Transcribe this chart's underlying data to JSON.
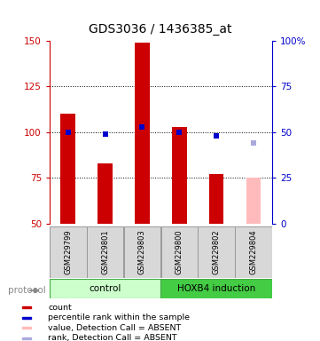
{
  "title": "GDS3036 / 1436385_at",
  "samples": [
    "GSM229799",
    "GSM229801",
    "GSM229803",
    "GSM229800",
    "GSM229802",
    "GSM229804"
  ],
  "ylim_left": [
    50,
    150
  ],
  "ylim_right": [
    0,
    100
  ],
  "yticks_left": [
    50,
    75,
    100,
    125,
    150
  ],
  "yticks_right": [
    0,
    25,
    50,
    75,
    100
  ],
  "ytick_labels_right": [
    "0",
    "25",
    "50",
    "75",
    "100%"
  ],
  "bar_values": [
    110,
    83,
    149,
    103,
    77,
    75
  ],
  "bar_colors": [
    "#cc0000",
    "#cc0000",
    "#cc0000",
    "#cc0000",
    "#cc0000",
    "#ffbbbb"
  ],
  "dot_values": [
    50,
    49,
    53,
    50,
    48,
    44
  ],
  "dot_colors": [
    "#0000cc",
    "#0000cc",
    "#0000cc",
    "#0000cc",
    "#0000cc",
    "#aaaadd"
  ],
  "left_axis_color": "#cc0000",
  "right_axis_color": "#0000cc",
  "legend_items": [
    {
      "color": "#cc0000",
      "label": "count"
    },
    {
      "color": "#0000cc",
      "label": "percentile rank within the sample"
    },
    {
      "color": "#ffbbbb",
      "label": "value, Detection Call = ABSENT"
    },
    {
      "color": "#aaaadd",
      "label": "rank, Detection Call = ABSENT"
    }
  ]
}
